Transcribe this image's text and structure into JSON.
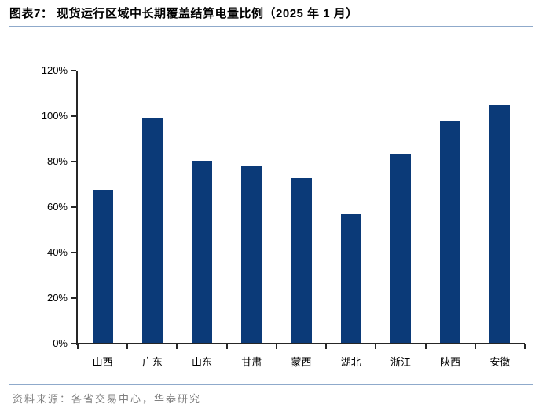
{
  "header": {
    "title": "图表7：  现货运行区域中长期覆盖结算电量比例（2025 年 1 月）"
  },
  "footer": {
    "source": "资料来源：各省交易中心，华泰研究"
  },
  "colors": {
    "bar": "#0b3a78",
    "axis": "#262626",
    "rule": "#8faacb",
    "title_text": "#000000",
    "source_text": "#808080"
  },
  "chart_data": {
    "type": "bar",
    "title": "现货运行区域中长期覆盖结算电量比例（2025 年 1 月）",
    "categories": [
      "山西",
      "广东",
      "山东",
      "甘肃",
      "蒙西",
      "湖北",
      "浙江",
      "陕西",
      "安徽"
    ],
    "values": [
      67.4,
      98.6,
      80.1,
      77.9,
      72.3,
      56.4,
      83.2,
      97.7,
      104.6
    ],
    "unit": "%",
    "xlabel": "",
    "ylabel": "",
    "ylim": [
      0,
      120
    ],
    "ytick_labels": [
      "0%",
      "20%",
      "40%",
      "60%",
      "80%",
      "100%",
      "120%"
    ],
    "grid": false,
    "legend": "none",
    "bar_color": "#0b3a78"
  }
}
